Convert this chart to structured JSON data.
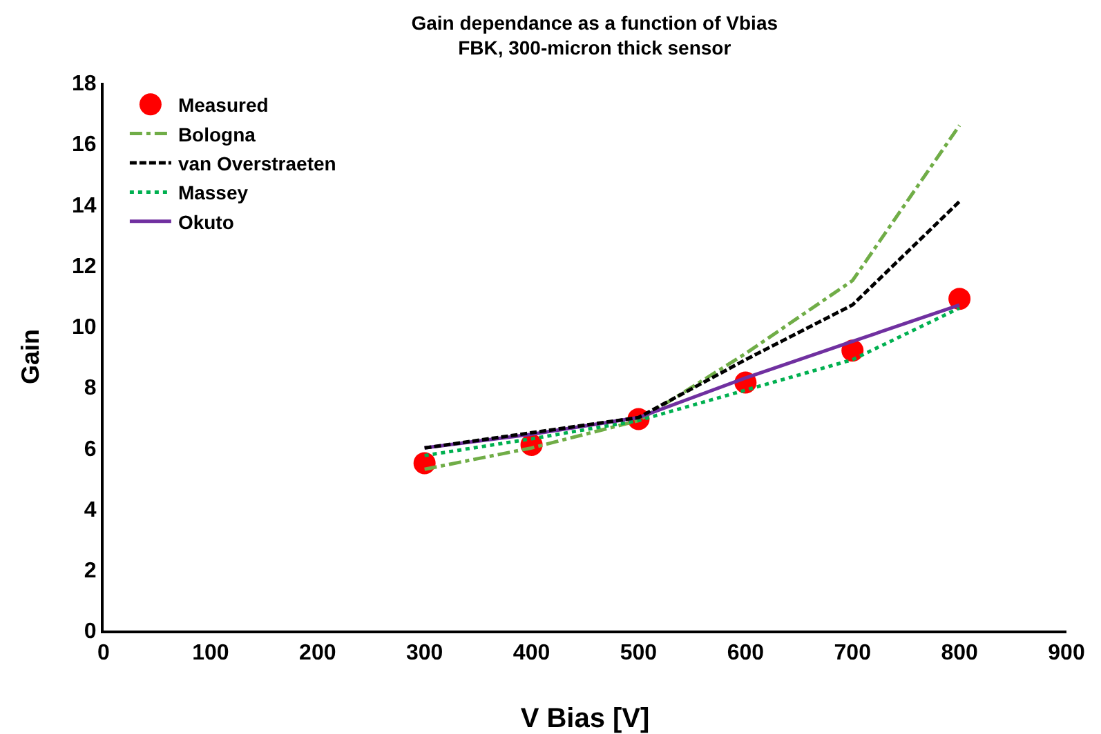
{
  "chart_data": {
    "type": "line",
    "title": "Gain dependance as a function of Vbias\nFBK, 300-micron thick sensor",
    "xlabel": "V Bias [V]",
    "ylabel": "Gain",
    "x": [
      300,
      400,
      500,
      600,
      700,
      800
    ],
    "series": [
      {
        "name": "Measured",
        "type": "scatter",
        "marker": "circle",
        "color": "#ff0000",
        "values": [
          5.5,
          6.1,
          6.95,
          8.15,
          9.2,
          10.9
        ]
      },
      {
        "name": "Bologna",
        "color": "#70ad47",
        "line_style": "dashdot",
        "values": [
          5.3,
          6.0,
          6.9,
          9.1,
          11.5,
          16.6
        ]
      },
      {
        "name": "van Overstraeten",
        "color": "#000000",
        "line_style": "dashed",
        "values": [
          6.0,
          6.5,
          7.0,
          8.9,
          10.7,
          14.1
        ]
      },
      {
        "name": "Massey",
        "color": "#00b050",
        "line_style": "dotted",
        "values": [
          5.75,
          6.3,
          6.9,
          7.9,
          8.9,
          10.6
        ]
      },
      {
        "name": "Okuto",
        "color": "#7030a0",
        "line_style": "solid",
        "values": [
          6.0,
          6.45,
          7.0,
          8.3,
          9.5,
          10.7
        ]
      }
    ],
    "xlim": [
      0,
      900
    ],
    "xticks": [
      0,
      100,
      200,
      300,
      400,
      500,
      600,
      700,
      800,
      900
    ],
    "ylim": [
      0,
      18
    ],
    "yticks": [
      0,
      2,
      4,
      6,
      8,
      10,
      12,
      14,
      16,
      18
    ],
    "grid": false,
    "legend": "top left"
  }
}
